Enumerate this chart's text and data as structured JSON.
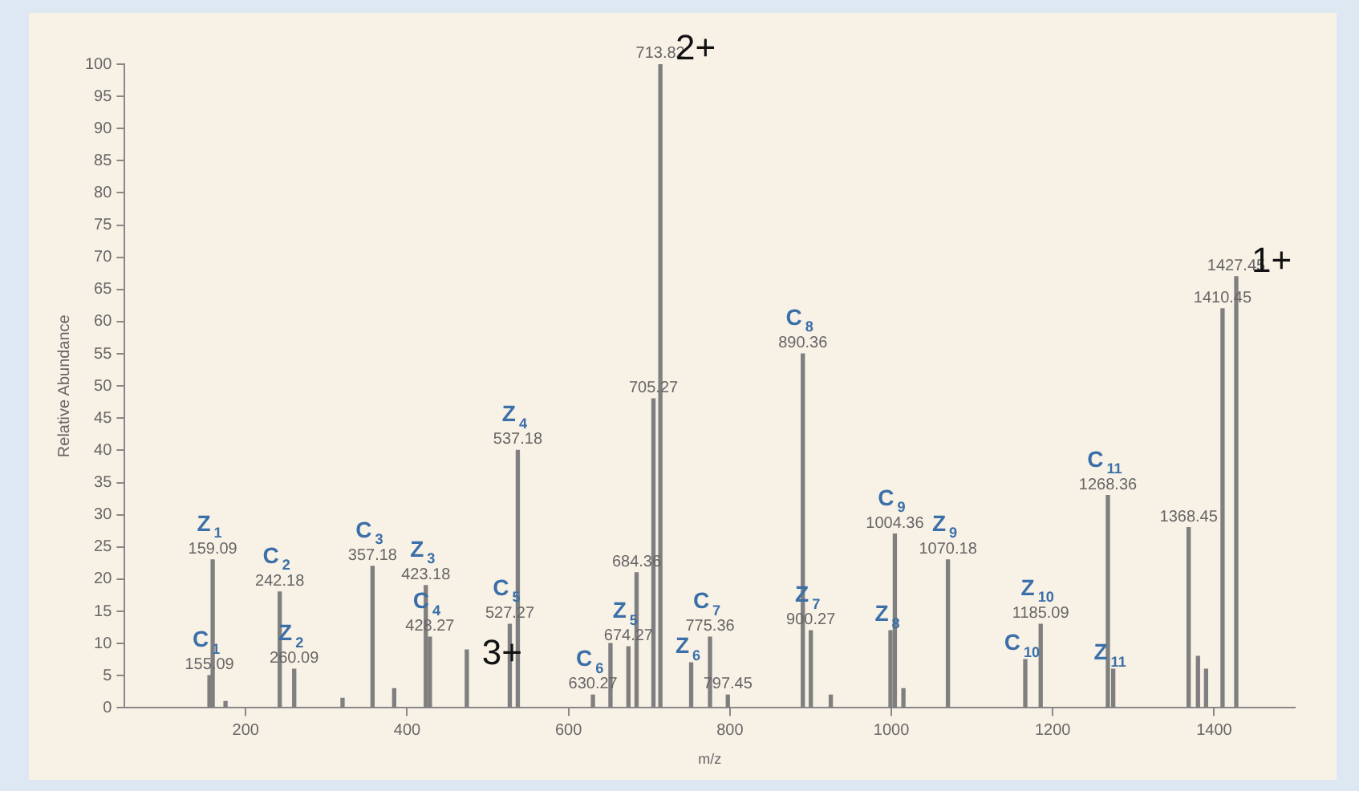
{
  "chart_data": {
    "type": "bar",
    "xlabel": "m/z",
    "ylabel": "Relative Abundance",
    "color": "#7f7f7f",
    "x": [
      155.09,
      159.09,
      175,
      242.18,
      260.09,
      320,
      357.18,
      384,
      423.18,
      428.27,
      474,
      527.27,
      537.18,
      630.27,
      652,
      674.27,
      684.36,
      705.27,
      713.82,
      752,
      775.36,
      797.45,
      890.36,
      900.27,
      925,
      999,
      1004.36,
      1015,
      1070.18,
      1166,
      1185.09,
      1268.36,
      1275,
      1368.45,
      1380,
      1390,
      1410.45,
      1427.45
    ],
    "values": [
      5,
      23,
      1,
      18,
      6,
      1.5,
      22,
      3,
      19,
      11,
      9,
      13,
      40,
      2,
      10,
      9.5,
      21,
      48,
      100,
      7,
      11,
      2,
      55,
      12,
      2,
      12,
      27,
      3,
      23,
      7.5,
      13,
      33,
      6,
      28,
      8,
      6,
      62,
      67
    ],
    "xlim": [
      50,
      1500
    ],
    "xticks": [
      200,
      400,
      600,
      800,
      1000,
      1200,
      1400
    ],
    "ylim": [
      0,
      100
    ],
    "yticks": [
      0,
      5,
      10,
      15,
      20,
      25,
      30,
      35,
      40,
      45,
      50,
      55,
      60,
      65,
      70,
      75,
      80,
      85,
      90,
      95,
      100
    ],
    "grid": false,
    "legend": false,
    "annotations": [
      {
        "text": "155.09",
        "x": 155.09,
        "y": 5
      },
      {
        "text": "C$_{1}$",
        "x": 155.09,
        "y": 5
      },
      {
        "text": "159.09",
        "x": 159.09,
        "y": 23
      },
      {
        "text": "Z$_{1}$",
        "x": 159.09,
        "y": 23
      },
      {
        "text": "242.18",
        "x": 242.18,
        "y": 18
      },
      {
        "text": "C$_{2}$",
        "x": 242.18,
        "y": 18
      },
      {
        "text": "260.09",
        "x": 260.09,
        "y": 6
      },
      {
        "text": "Z$_{2}$",
        "x": 260.09,
        "y": 6
      },
      {
        "text": "357.18",
        "x": 357.18,
        "y": 22
      },
      {
        "text": "C$_{3}$",
        "x": 357.18,
        "y": 22
      },
      {
        "text": "423.18",
        "x": 423.18,
        "y": 19
      },
      {
        "text": "Z$_{3}$",
        "x": 423.18,
        "y": 19
      },
      {
        "text": "428.27",
        "x": 428.27,
        "y": 11
      },
      {
        "text": "C$_{4}$",
        "x": 428.27,
        "y": 11
      },
      {
        "text": "3+",
        "x": 474,
        "y": 9
      },
      {
        "text": "527.27",
        "x": 527.27,
        "y": 13
      },
      {
        "text": "C$_{5}$",
        "x": 527.27,
        "y": 13
      },
      {
        "text": "537.18",
        "x": 537.18,
        "y": 40
      },
      {
        "text": "Z$_{4}$",
        "x": 537.18,
        "y": 40
      },
      {
        "text": "630.27",
        "x": 630.27,
        "y": 2
      },
      {
        "text": "C$_{6}$",
        "x": 630.27,
        "y": 2
      },
      {
        "text": "674.27",
        "x": 674.27,
        "y": 9.5
      },
      {
        "text": "Z$_{5}$",
        "x": 674.27,
        "y": 9.5
      },
      {
        "text": "684.36",
        "x": 684.36,
        "y": 21
      },
      {
        "text": "705.27",
        "x": 705.27,
        "y": 48
      },
      {
        "text": "713.82",
        "x": 713.82,
        "y": 100
      },
      {
        "text": "2+",
        "x": 713.82,
        "y": 100
      },
      {
        "text": "Z$_{6}$",
        "x": 752,
        "y": 7
      },
      {
        "text": "775.36",
        "x": 775.36,
        "y": 11
      },
      {
        "text": "C$_{7}$",
        "x": 775.36,
        "y": 11
      },
      {
        "text": "797.45",
        "x": 797.45,
        "y": 2
      },
      {
        "text": "890.36",
        "x": 890.36,
        "y": 55
      },
      {
        "text": "C$_{8}$",
        "x": 890.36,
        "y": 55
      },
      {
        "text": "900.27",
        "x": 900.27,
        "y": 12
      },
      {
        "text": "Z$_{7}$",
        "x": 900.27,
        "y": 12
      },
      {
        "text": "Z$_{8}$",
        "x": 999,
        "y": 12
      },
      {
        "text": "1004.36",
        "x": 1004.36,
        "y": 27
      },
      {
        "text": "C$_{9}$",
        "x": 1004.36,
        "y": 27
      },
      {
        "text": "1070.18",
        "x": 1070.18,
        "y": 23
      },
      {
        "text": "Z$_{9}$",
        "x": 1070.18,
        "y": 23
      },
      {
        "text": "C$_{10}$",
        "x": 1166,
        "y": 7.5
      },
      {
        "text": "1185.09",
        "x": 1185.09,
        "y": 13
      },
      {
        "text": "Z$_{10}$",
        "x": 1185.09,
        "y": 13
      },
      {
        "text": "1268.36",
        "x": 1268.36,
        "y": 33
      },
      {
        "text": "C$_{11}$",
        "x": 1268.36,
        "y": 33
      },
      {
        "text": "Z$_{11}$",
        "x": 1275,
        "y": 6
      },
      {
        "text": "1368.45",
        "x": 1368.45,
        "y": 28
      },
      {
        "text": "1410.45",
        "x": 1410.45,
        "y": 62
      },
      {
        "text": "1427.45",
        "x": 1427.45,
        "y": 67
      },
      {
        "text": "1+",
        "x": 1427.45,
        "y": 67
      }
    ]
  }
}
